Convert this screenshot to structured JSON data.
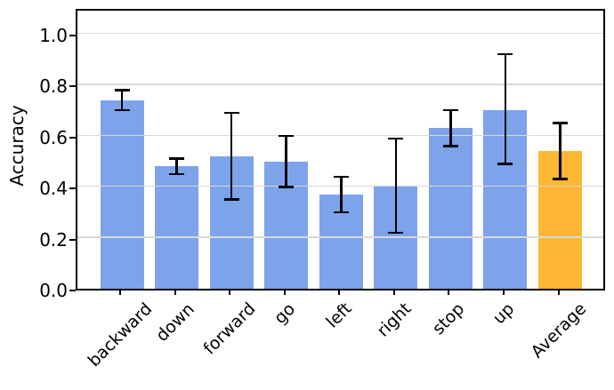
{
  "chart_data": {
    "type": "bar",
    "title": "",
    "xlabel": "",
    "ylabel": "Accuracy",
    "categories": [
      "backward",
      "down",
      "forward",
      "go",
      "left",
      "right",
      "stop",
      "up",
      "Average"
    ],
    "values": [
      0.74,
      0.48,
      0.52,
      0.5,
      0.37,
      0.4,
      0.63,
      0.7,
      0.54
    ],
    "error_low": [
      0.7,
      0.45,
      0.35,
      0.4,
      0.3,
      0.22,
      0.56,
      0.49,
      0.43
    ],
    "error_high": [
      0.78,
      0.51,
      0.69,
      0.6,
      0.44,
      0.59,
      0.7,
      0.92,
      0.65
    ],
    "highlight_index": 8,
    "yticks": [
      0.0,
      0.2,
      0.4,
      0.6,
      0.8,
      1.0
    ],
    "ytick_labels": [
      "0.0",
      "0.2",
      "0.4",
      "0.6",
      "0.8",
      "1.0"
    ],
    "ylim": [
      0,
      1.105
    ],
    "grid": true,
    "grid_on_top": true,
    "legend": null,
    "colors": {
      "bar": "#7DA3EB",
      "highlight": "#FFB734",
      "error_bar": "#000000",
      "grid": "#D8D8D8",
      "axis": "#000000",
      "text": "#000000",
      "background": "#FFFFFF"
    }
  }
}
